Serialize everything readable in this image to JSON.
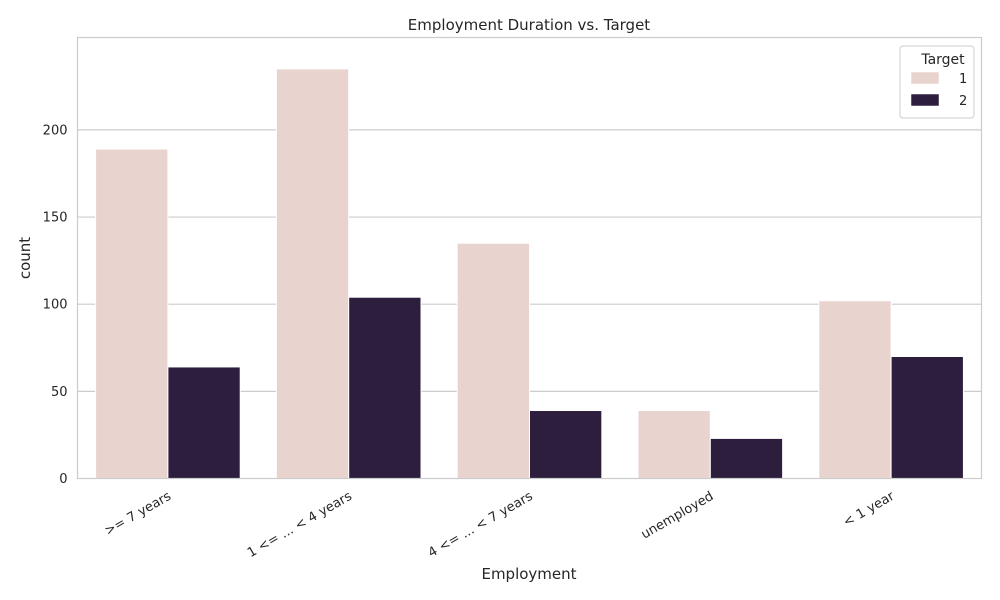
{
  "chart_data": {
    "type": "bar",
    "title": "Employment Duration vs. Target",
    "xlabel": "Employment",
    "ylabel": "count",
    "categories": [
      ">= 7 years",
      "1 <= ... < 4 years",
      "4 <= ... < 7 years",
      "unemployed",
      "< 1 year"
    ],
    "series": [
      {
        "name": "1",
        "values": [
          189,
          235,
          135,
          39,
          102
        ],
        "color": "#e9d3ce"
      },
      {
        "name": "2",
        "values": [
          64,
          104,
          39,
          23,
          70
        ],
        "color": "#2d1e3e"
      }
    ],
    "ylim": [
      0,
      253
    ],
    "yticks": [
      0,
      50,
      100,
      150,
      200
    ],
    "grid": true,
    "legend": {
      "title": "Target",
      "placement": "top-right"
    }
  }
}
